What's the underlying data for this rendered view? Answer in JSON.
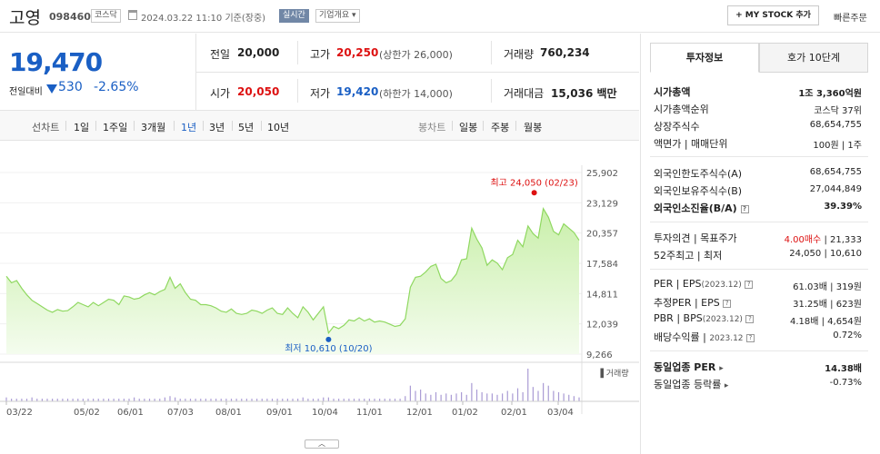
{
  "header": {
    "name": "고영",
    "code": "098460",
    "market": "코스닥",
    "datetime": "2024.03.22 11:10",
    "basis": "기준(장중)",
    "live": "실시간",
    "corp_info": "기업개요",
    "my_stock": "+ MY STOCK 추가",
    "quick_order": "빠른주문"
  },
  "summary": {
    "price": "19,470",
    "change_label": "전일대비",
    "change": "530",
    "change_pct": "-2.65%",
    "prev_label": "전일",
    "prev": "20,000",
    "high_label": "고가",
    "high": "20,250",
    "upper": "(상한가 26,000)",
    "volume_label": "거래량",
    "volume": "760,234",
    "open_label": "시가",
    "open": "20,050",
    "low_label": "저가",
    "low": "19,420",
    "lower": "(하한가 14,000)",
    "amount_label": "거래대금",
    "amount": "15,036",
    "amount_unit": "백만"
  },
  "period": {
    "line_label": "선차트",
    "line_tabs": [
      "1일",
      "1주일",
      "3개월",
      "1년",
      "3년",
      "5년",
      "10년"
    ],
    "active": "1년",
    "candle_label": "봉차트",
    "candle_tabs": [
      "일봉",
      "주봉",
      "월봉"
    ]
  },
  "chart_data": {
    "type": "area",
    "y_ticks": [
      "25,902",
      "23,129",
      "20,357",
      "17,584",
      "14,811",
      "12,039",
      "9,266"
    ],
    "ylim": [
      9266,
      25902
    ],
    "x_ticks": [
      "03/22",
      "05/02",
      "06/01",
      "07/03",
      "08/01",
      "09/01",
      "10/04",
      "11/01",
      "12/01",
      "01/02",
      "02/01",
      "03/04"
    ],
    "high_label": "최고 24,050 (02/23)",
    "low_label": "최저 10,610 (10/20)",
    "high": 24050,
    "low": 10610,
    "volume_label": "거래량",
    "series": [
      {
        "values": [
          16400,
          15800,
          16000,
          15300,
          14700,
          14200,
          13900,
          13600,
          13300,
          13100,
          13350,
          13200,
          13250,
          13600,
          14000,
          13800,
          13600,
          14000,
          13700,
          14000,
          14300,
          14200,
          13800,
          14600,
          14500,
          14300,
          14400,
          14700,
          14900,
          14700,
          15000,
          15200,
          16300,
          15300,
          15700,
          14900,
          14300,
          14200,
          13800,
          13800,
          13700,
          13500,
          13200,
          13100,
          13400,
          13000,
          12900,
          13000,
          13300,
          13200,
          13000,
          13300,
          13500,
          13000,
          12900,
          13500,
          13000,
          12600,
          13600,
          13100,
          12400,
          13000,
          13600,
          11200,
          11800,
          11600,
          11900,
          12400,
          12300,
          12600,
          12300,
          12500,
          12200,
          12300,
          12200,
          12000,
          11800,
          11900,
          12500,
          15400,
          16300,
          16400,
          16800,
          17300,
          17500,
          16200,
          15800,
          16000,
          16600,
          17900,
          18000,
          20800,
          19800,
          19000,
          17400,
          17900,
          17600,
          17000,
          18100,
          18400,
          19700,
          19100,
          21000,
          20300,
          19900,
          22600,
          21800,
          20500,
          20200,
          21200,
          20800,
          20400,
          19700
        ]
      }
    ],
    "volume": [
      3,
      2,
      2,
      2,
      2,
      3,
      2,
      2,
      2,
      2,
      2,
      2,
      2,
      2,
      2,
      2,
      2,
      2,
      2,
      2,
      2,
      2,
      2,
      2,
      2,
      3,
      2,
      2,
      2,
      2,
      2,
      3,
      4,
      3,
      2,
      2,
      2,
      2,
      2,
      2,
      2,
      2,
      2,
      2,
      2,
      2,
      2,
      2,
      2,
      2,
      2,
      2,
      2,
      2,
      2,
      2,
      2,
      2,
      3,
      2,
      2,
      2,
      3,
      3,
      2,
      2,
      2,
      2,
      2,
      2,
      2,
      2,
      2,
      2,
      2,
      2,
      2,
      2,
      4,
      12,
      8,
      9,
      6,
      5,
      7,
      5,
      6,
      5,
      6,
      7,
      5,
      14,
      9,
      7,
      6,
      6,
      5,
      6,
      8,
      6,
      10,
      7,
      25,
      11,
      8,
      14,
      12,
      8,
      7,
      6,
      5,
      4,
      3
    ]
  },
  "right_panel": {
    "tab_invest": "투자정보",
    "tab_hoga": "호가 10단계",
    "market_cap_label": "시가총액",
    "market_cap": "1조 3,360억원",
    "rank_label": "시가총액순위",
    "rank": "코스닥 37위",
    "shares_label": "상장주식수",
    "shares": "68,654,755",
    "par_label": "액면가 | 매매단위",
    "par": "100원 | 1주",
    "foreign_limit_label": "외국인한도주식수(A)",
    "foreign_limit": "68,654,755",
    "foreign_hold_label": "외국인보유주식수(B)",
    "foreign_hold": "27,044,849",
    "foreign_ratio_label": "외국인소진율(B/A)",
    "foreign_ratio": "39.39%",
    "opinion_label": "투자의견 | 목표주가",
    "opinion": "4.00매수",
    "target": "| 21,333",
    "w52_label": "52주최고 | 최저",
    "w52": "24,050 | 10,610",
    "per_label": "PER | EPS",
    "per_period": "(2023.12)",
    "per": "61.03배 | 319원",
    "eper_label": "추정PER | EPS",
    "eper": "31.25배 | 623원",
    "pbr_label": "PBR | BPS",
    "pbr_period": "(2023.12)",
    "pbr": "4.18배 | 4,654원",
    "div_label": "배당수익률",
    "div_period": "2023.12",
    "div": "0.72%",
    "ind_per_label": "동일업종 PER",
    "ind_per": "14.38배",
    "ind_rate_label": "동일업종 등락률",
    "ind_rate": "-0.73%"
  },
  "colors": {
    "blue": "#1a5fc4",
    "red": "#d11",
    "area_fill": "#d6f3c0",
    "area_line": "#8fd860"
  }
}
